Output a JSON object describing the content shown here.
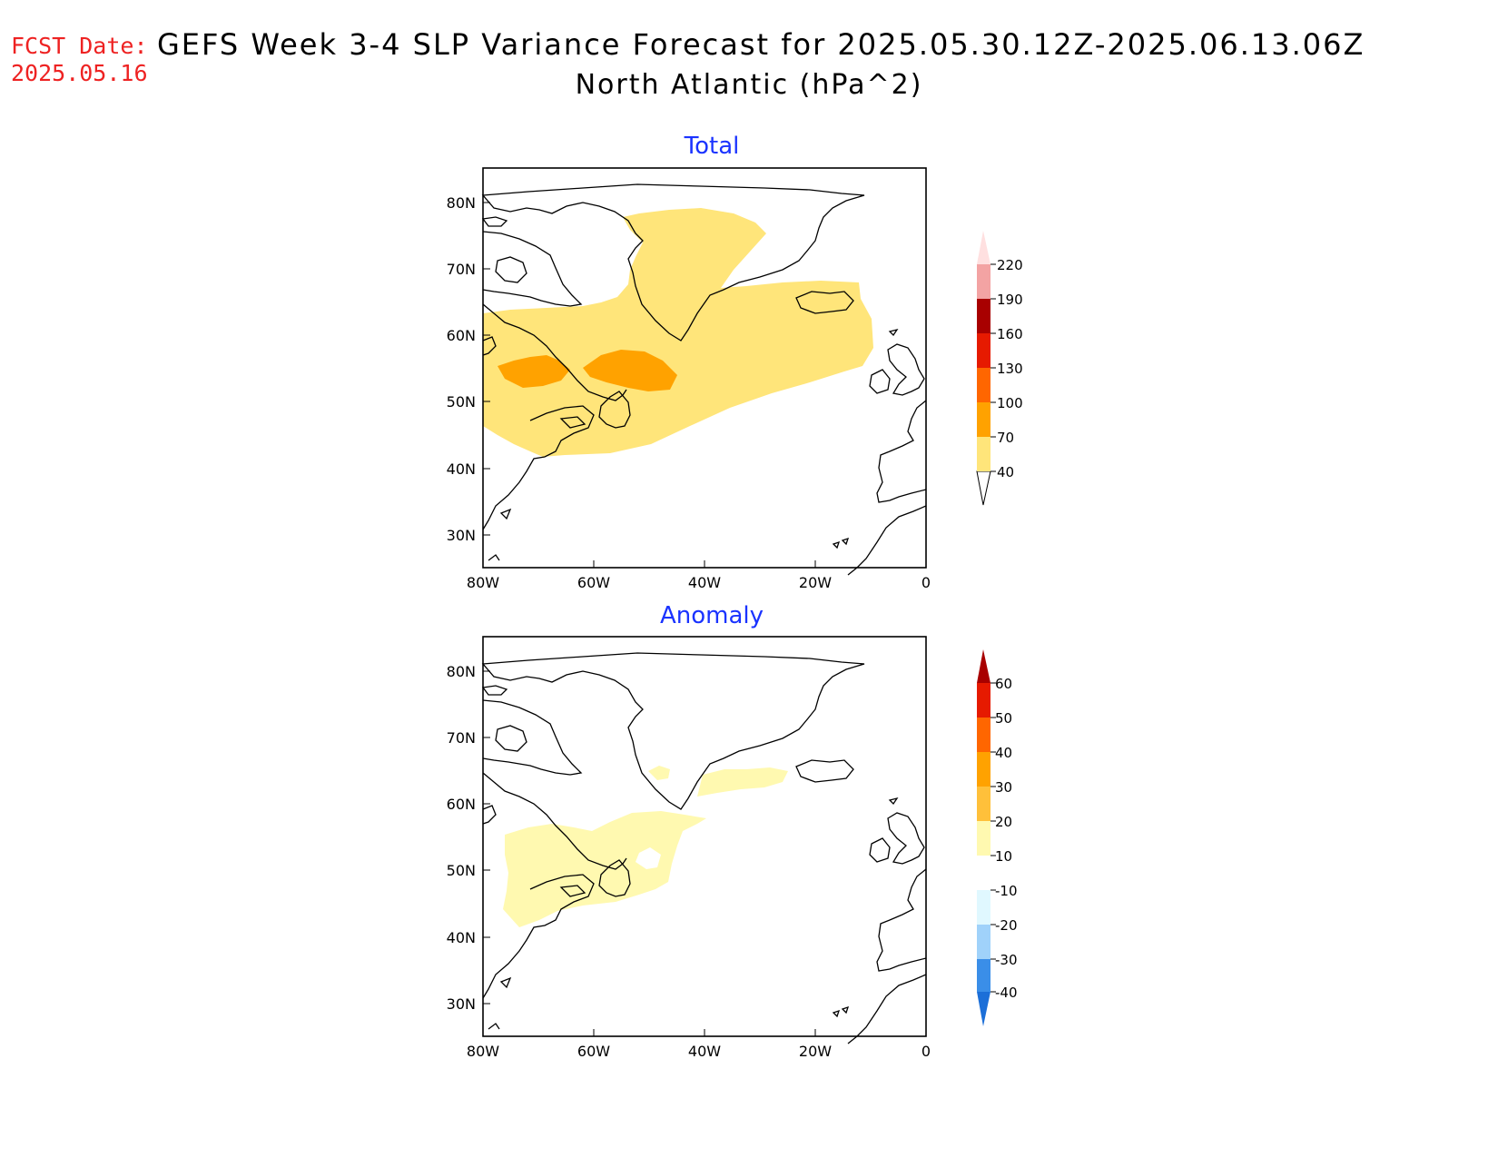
{
  "header": {
    "fcst_label": "FCST Date:",
    "fcst_date": "2025.05.16",
    "title": "GEFS Week 3-4 SLP Variance Forecast for 2025.05.30.12Z-2025.06.13.06Z",
    "subtitle": "North Atlantic (hPa^2)"
  },
  "map": {
    "lat_labels": [
      "80N",
      "70N",
      "60N",
      "50N",
      "40N",
      "30N"
    ],
    "lon_labels": [
      "80W",
      "60W",
      "40W",
      "20W",
      "0"
    ]
  },
  "panels": [
    {
      "title": "Total",
      "colorbar": {
        "levels": [
          "40",
          "70",
          "100",
          "130",
          "160",
          "190",
          "220"
        ],
        "colors": [
          "#ffe57a",
          "#ffa200",
          "#ff6600",
          "#e61a00",
          "#a80000",
          "#f3a3a3",
          "#ffe0e0"
        ]
      }
    },
    {
      "title": "Anomaly",
      "colorbar": {
        "levels": [
          "60",
          "50",
          "40",
          "30",
          "20",
          "10",
          "-10",
          "-20",
          "-30",
          "-40"
        ],
        "colors": [
          "#a80000",
          "#e61a00",
          "#ff6600",
          "#ffa200",
          "#ffc03a",
          "#fff9b0",
          "#ffffff",
          "#e0f8ff",
          "#a0d2fa",
          "#3a8ee8",
          "#1c6fd8"
        ]
      }
    }
  ]
}
